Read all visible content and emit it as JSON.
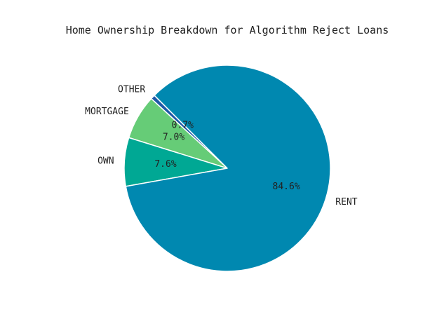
{
  "chart_data": {
    "type": "pie",
    "title": "Home Ownership Breakdown for Algorithm Reject Loans",
    "start_angle_deg": 135,
    "direction": "counterclockwise",
    "slices": [
      {
        "label": "OTHER",
        "value": 0.7,
        "pct_label": "0.7%",
        "color": "#1f5aa8"
      },
      {
        "label": "MORTGAGE",
        "value": 7.0,
        "pct_label": "7.0%",
        "color": "#66cc77"
      },
      {
        "label": "OWN",
        "value": 7.6,
        "pct_label": "7.6%",
        "color": "#00a894"
      },
      {
        "label": "RENT",
        "value": 84.6,
        "pct_label": "84.6%",
        "color": "#0088b0"
      }
    ]
  }
}
